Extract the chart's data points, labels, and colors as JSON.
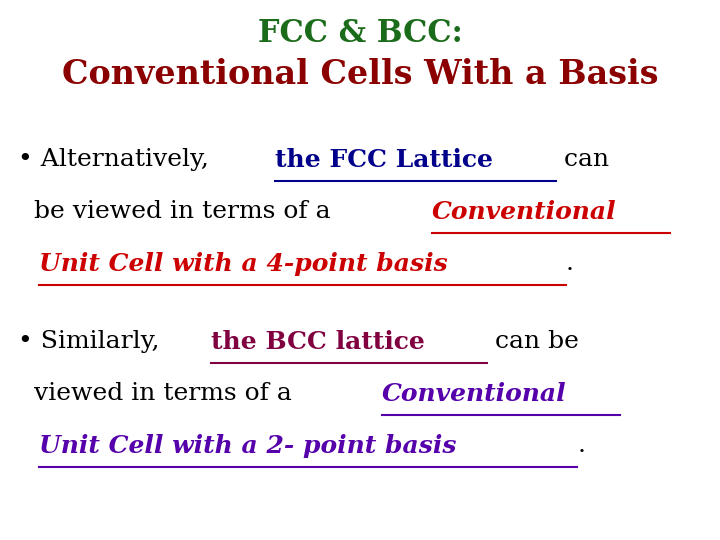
{
  "background_color": "#ffffff",
  "title_line1": "FCC & BCC:",
  "title_line1_color": "#1a6b1a",
  "title_line2": "Conventional Cells With a Basis",
  "title_line2_color": "#8B0000",
  "title1_fontsize": 22,
  "title2_fontsize": 24,
  "body_fontsize": 18,
  "bullet1_lines": [
    [
      {
        "text": "• Alternatively, ",
        "color": "#000000",
        "style": "normal",
        "underline": false,
        "weight": "normal"
      },
      {
        "text": "the FCC Lattice",
        "color": "#00008B",
        "style": "normal",
        "underline": true,
        "weight": "bold"
      },
      {
        "text": " can",
        "color": "#000000",
        "style": "normal",
        "underline": false,
        "weight": "normal"
      }
    ],
    [
      {
        "text": "  be viewed in terms of a ",
        "color": "#000000",
        "style": "normal",
        "underline": false,
        "weight": "normal"
      },
      {
        "text": "Conventional",
        "color": "#cc0000",
        "style": "italic",
        "underline": true,
        "weight": "bold"
      }
    ],
    [
      {
        "text": "  ",
        "color": "#000000",
        "style": "normal",
        "underline": false,
        "weight": "normal"
      },
      {
        "text": "Unit Cell with a 4-point basis",
        "color": "#cc0000",
        "style": "italic",
        "underline": true,
        "weight": "bold"
      },
      {
        "text": ".",
        "color": "#000000",
        "style": "normal",
        "underline": false,
        "weight": "normal"
      }
    ]
  ],
  "bullet2_lines": [
    [
      {
        "text": "• Similarly, ",
        "color": "#000000",
        "style": "normal",
        "underline": false,
        "weight": "normal"
      },
      {
        "text": "the BCC lattice",
        "color": "#800040",
        "style": "normal",
        "underline": true,
        "weight": "bold"
      },
      {
        "text": " can be",
        "color": "#000000",
        "style": "normal",
        "underline": false,
        "weight": "normal"
      }
    ],
    [
      {
        "text": "  viewed in terms of a ",
        "color": "#000000",
        "style": "normal",
        "underline": false,
        "weight": "normal"
      },
      {
        "text": "Conventional",
        "color": "#5500aa",
        "style": "italic",
        "underline": true,
        "weight": "bold"
      }
    ],
    [
      {
        "text": "  ",
        "color": "#000000",
        "style": "normal",
        "underline": false,
        "weight": "normal"
      },
      {
        "text": "Unit Cell with a 2- point basis",
        "color": "#5500aa",
        "style": "italic",
        "underline": true,
        "weight": "bold"
      },
      {
        "text": ".",
        "color": "#000000",
        "style": "normal",
        "underline": false,
        "weight": "normal"
      }
    ]
  ]
}
